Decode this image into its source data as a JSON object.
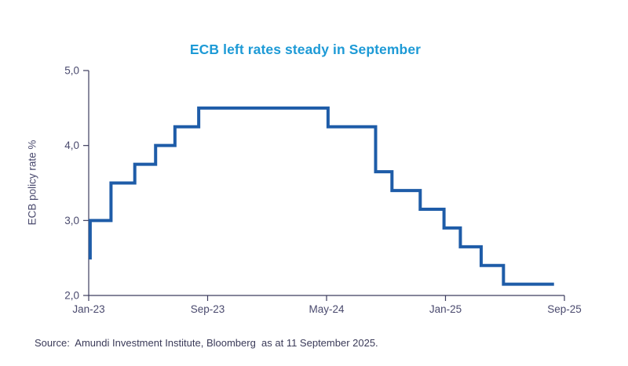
{
  "header": {
    "title": "ECB left rates steady in September"
  },
  "footer": {
    "source_text": "Source:  Amundi Investment Institute, Bloomberg  as at 11 September 2025."
  },
  "theme": {
    "background": "#ffffff",
    "title_color": "#1D9AD6",
    "line_color": "#1E5CA8",
    "axis_color": "#3C3C5E",
    "tick_label_color": "#4A4A6E",
    "source_color": "#3A3A58"
  },
  "chart_data": {
    "type": "line",
    "line_style": "step",
    "title": "ECB left rates steady in September",
    "xlabel": "",
    "ylabel": "ECB policy rate %",
    "grid": false,
    "legend": "none",
    "ylim": [
      2.0,
      5.0
    ],
    "xlim_months": [
      0,
      32
    ],
    "y_ticks": [
      {
        "label": "2,0",
        "value": 2.0
      },
      {
        "label": "3,0",
        "value": 3.0
      },
      {
        "label": "4,0",
        "value": 4.0
      },
      {
        "label": "5,0",
        "value": 5.0
      }
    ],
    "x_ticks": [
      {
        "label": "Jan-23",
        "month": 0
      },
      {
        "label": "Sep-23",
        "month": 8
      },
      {
        "label": "May-24",
        "month": 16
      },
      {
        "label": "Jan-25",
        "month": 24
      },
      {
        "label": "Sep-25",
        "month": 32
      }
    ],
    "series": [
      {
        "name": "ECB policy rate %",
        "color": "#1E5CA8",
        "points_unit": "[months since Jan-23, rate %]",
        "points": [
          [
            0.0,
            2.5
          ],
          [
            0.1,
            3.0
          ],
          [
            1.5,
            3.5
          ],
          [
            3.1,
            3.75
          ],
          [
            4.5,
            4.0
          ],
          [
            5.8,
            4.25
          ],
          [
            7.4,
            4.5
          ],
          [
            16.1,
            4.25
          ],
          [
            19.3,
            3.65
          ],
          [
            20.4,
            3.4
          ],
          [
            22.3,
            3.15
          ],
          [
            23.9,
            2.9
          ],
          [
            25.0,
            2.65
          ],
          [
            26.4,
            2.4
          ],
          [
            27.9,
            2.15
          ],
          [
            31.3,
            2.15
          ]
        ]
      }
    ]
  }
}
